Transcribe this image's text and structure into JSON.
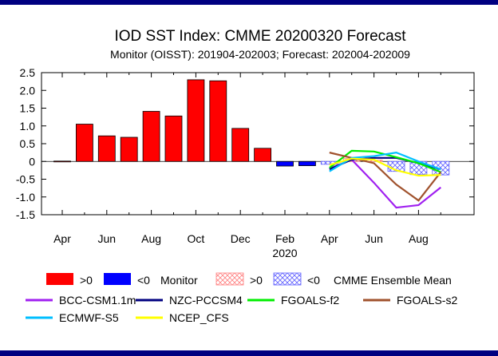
{
  "chart_data": {
    "type": "bar",
    "title": "IOD SST Index: CMME 20200320 Forecast",
    "subtitle": "Monitor (OISST): 201904-202003; Forecast: 202004-202009",
    "xlabel": "",
    "ylabel": "",
    "ylim": [
      -1.5,
      2.5
    ],
    "yticks": [
      "2.5",
      "2.0",
      "1.5",
      "1.0",
      "0.5",
      "0",
      "-0.5",
      "-1.0",
      "-1.5"
    ],
    "xticks": [
      {
        "label": "Apr",
        "month": "2019-04"
      },
      {
        "label": "Jun",
        "month": "2019-06"
      },
      {
        "label": "Aug",
        "month": "2019-08"
      },
      {
        "label": "Oct",
        "month": "2019-10"
      },
      {
        "label": "Dec",
        "month": "2019-12"
      },
      {
        "label": "Feb",
        "month": "2020-02",
        "sublabel": "2020"
      },
      {
        "label": "Apr",
        "month": "2020-04"
      },
      {
        "label": "Jun",
        "month": "2020-06"
      },
      {
        "label": "Aug",
        "month": "2020-08"
      }
    ],
    "monitor": {
      "months": [
        "2019-04",
        "2019-05",
        "2019-06",
        "2019-07",
        "2019-08",
        "2019-09",
        "2019-10",
        "2019-11",
        "2019-12",
        "2020-01",
        "2020-02",
        "2020-03"
      ],
      "values": [
        0.01,
        1.05,
        0.72,
        0.68,
        1.41,
        1.28,
        2.3,
        2.27,
        0.93,
        0.37,
        -0.13,
        -0.12
      ]
    },
    "ensemble_mean": {
      "months": [
        "2020-04",
        "2020-05",
        "2020-06",
        "2020-07",
        "2020-08",
        "2020-09"
      ],
      "values": [
        -0.08,
        0.08,
        0.04,
        -0.28,
        -0.37,
        -0.38
      ]
    },
    "series": [
      {
        "name": "BCC-CSM1.1m",
        "color": "#a020f0",
        "values": [
          -0.2,
          0.05,
          -0.6,
          -1.3,
          -1.23,
          -0.73
        ]
      },
      {
        "name": "NZC-PCCSM4",
        "color": "#000080",
        "values": [
          -0.22,
          0.05,
          0.1,
          0.1,
          -0.05,
          -0.22
        ]
      },
      {
        "name": "FGOALS-f2",
        "color": "#00ee00",
        "values": [
          -0.18,
          0.3,
          0.28,
          0.12,
          -0.05,
          -0.3
        ]
      },
      {
        "name": "FGOALS-s2",
        "color": "#a0522d",
        "values": [
          0.25,
          0.1,
          -0.05,
          -0.65,
          -1.1,
          -0.3
        ]
      },
      {
        "name": "ECMWF-S5",
        "color": "#00bfff",
        "values": [
          -0.28,
          0.1,
          0.15,
          0.25,
          0.0,
          -0.22
        ]
      },
      {
        "name": "NCEP_CFS",
        "color": "#ffff00",
        "values": [
          -0.1,
          0.08,
          0.05,
          -0.25,
          -0.4,
          -0.38
        ]
      }
    ],
    "grid": false,
    "legend_position": "bottom",
    "colors": {
      "positive": "#ff0000",
      "negative": "#0000ff",
      "ensemble_positive": "#ff8080",
      "ensemble_negative": "#6060ff"
    }
  },
  "legend": {
    "pos_label": ">0",
    "neg_label": "<0",
    "monitor_label": "Monitor",
    "ens_pos_label": ">0",
    "ens_neg_label": "<0",
    "ensemble_label": "CMME Ensemble Mean"
  }
}
